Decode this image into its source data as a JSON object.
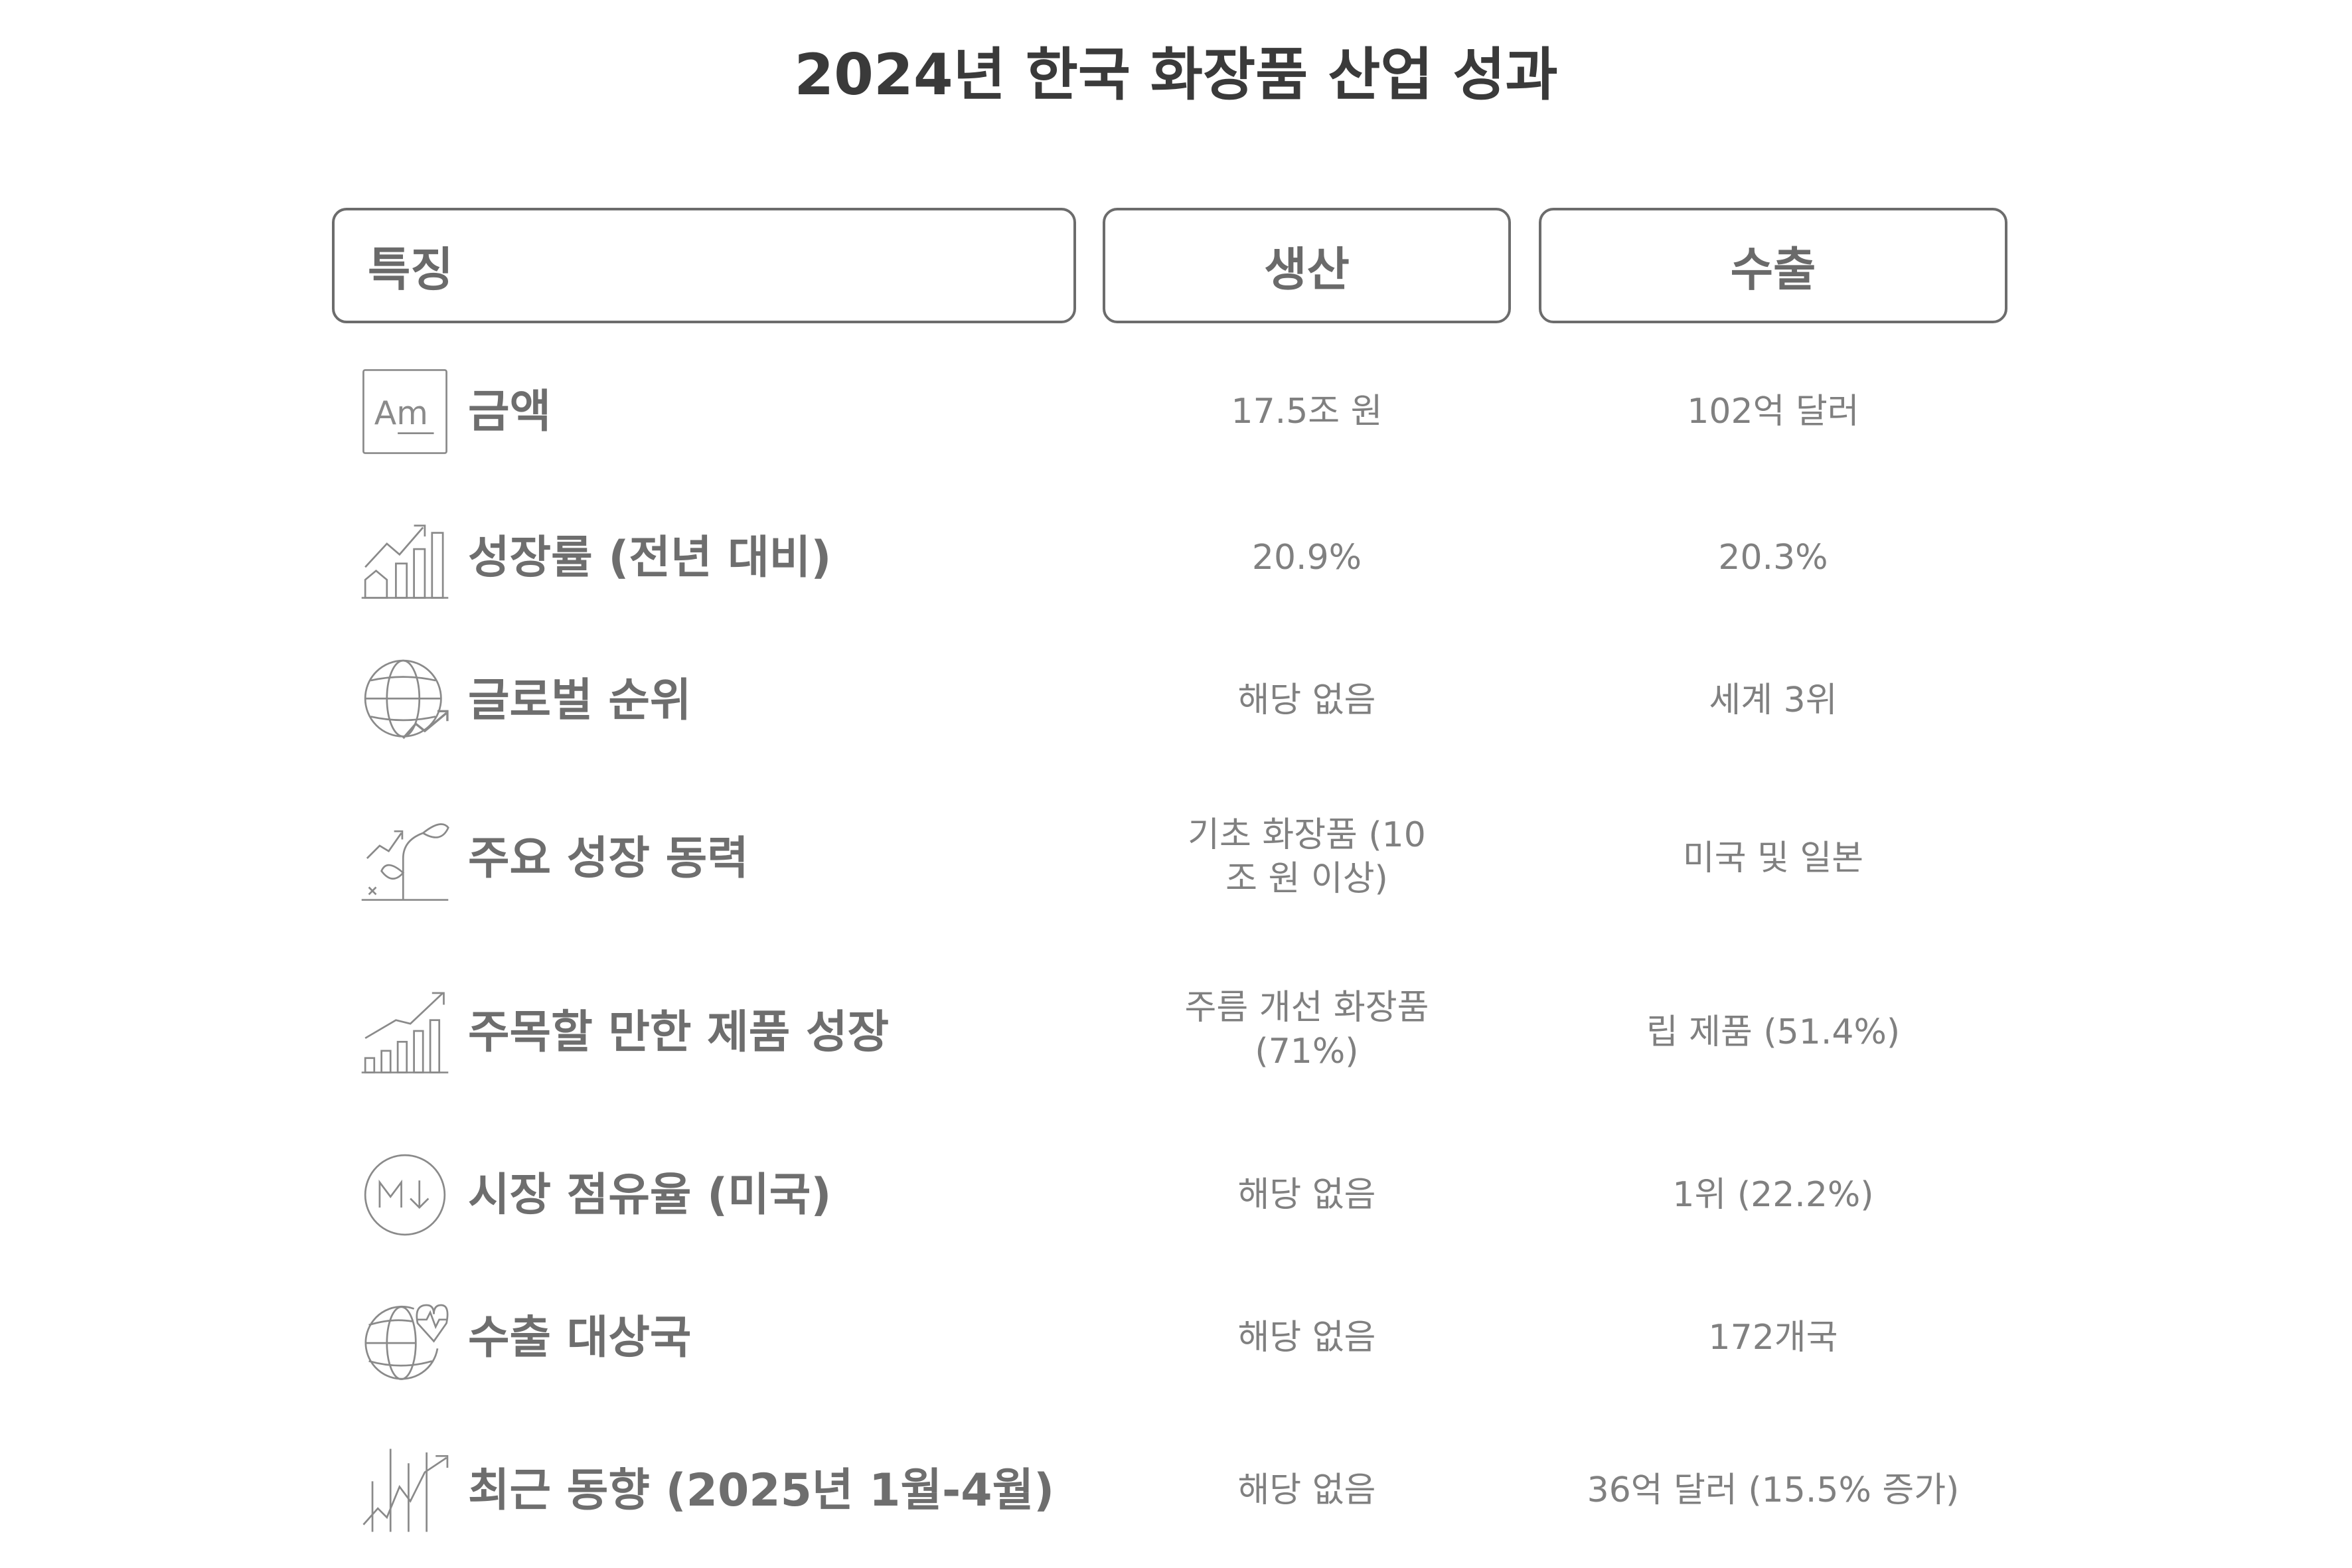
{
  "title": "2024년 한국 화장품 산업 성과",
  "headers": {
    "feature": "특징",
    "production": "생산",
    "export": "수출"
  },
  "rows": [
    {
      "icon": "font-text-icon",
      "feature": "금액",
      "production": "17.5조 원",
      "export": "102억 달러"
    },
    {
      "icon": "growth-chart-icon",
      "feature": "성장률 (전년 대비)",
      "production": "20.9%",
      "export": "20.3%"
    },
    {
      "icon": "globe-trend-icon",
      "feature": "글로벌 순위",
      "production": "해당 없음",
      "export": "세계 3위"
    },
    {
      "icon": "plant-growth-icon",
      "feature": "주요 성장 동력",
      "production": "기초 화장품 (10조 원 이상)",
      "export": "미국 및 일본"
    },
    {
      "icon": "bar-chart-up-icon",
      "feature": "주목할 만한 제품 성장",
      "production": "주름 개선 화장품 (71%)",
      "export": "립 제품 (51.4%)"
    },
    {
      "icon": "markdown-icon",
      "feature": "시장 점유율 (미국)",
      "production": "해당 없음",
      "export": "1위 (22.2%)"
    },
    {
      "icon": "globe-heartbeat-icon",
      "feature": "수출 대상국",
      "production": "해당 없음",
      "export": "172개국"
    },
    {
      "icon": "line-trend-icon",
      "feature": "최근 동향 (2025년 1월-4월)",
      "production": "해당 없음",
      "export": "36억 달러 (15.5% 증가)"
    }
  ]
}
